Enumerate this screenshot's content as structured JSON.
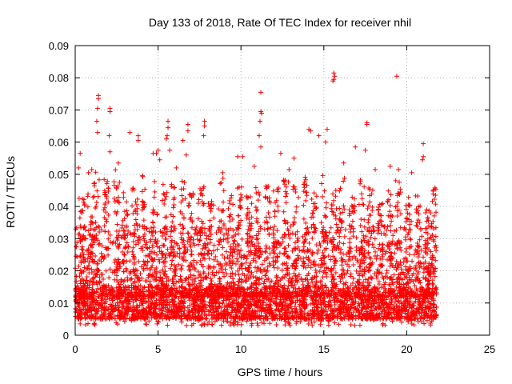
{
  "chart_data": {
    "type": "scatter",
    "title": "Day 133 of 2018, Rate Of TEC Index for receiver nhil",
    "xlabel": "GPS time / hours",
    "ylabel": "ROTI / TECUs",
    "xlim": [
      0,
      25
    ],
    "ylim": [
      0,
      0.09
    ],
    "x_ticks": [
      0,
      5,
      10,
      15,
      20,
      25
    ],
    "x_tick_labels": [
      "0",
      "5",
      "10",
      "15",
      "20",
      "25"
    ],
    "y_ticks": [
      0,
      0.01,
      0.02,
      0.03,
      0.04,
      0.05,
      0.06,
      0.07,
      0.08,
      0.09
    ],
    "y_tick_labels": [
      "0",
      "0.01",
      "0.02",
      "0.03",
      "0.04",
      "0.05",
      "0.06",
      "0.07",
      "0.08",
      "0.09"
    ],
    "grid": true,
    "marker": "+",
    "color": "#ff0000",
    "x_data_range": [
      0,
      21.8
    ],
    "baseline_band": [
      0.005,
      0.015
    ],
    "outliers": [
      {
        "x": 1.4,
        "y": 0.0745
      },
      {
        "x": 1.4,
        "y": 0.0735
      },
      {
        "x": 1.35,
        "y": 0.0705
      },
      {
        "x": 1.3,
        "y": 0.0665
      },
      {
        "x": 1.35,
        "y": 0.063
      },
      {
        "x": 2.1,
        "y": 0.0705
      },
      {
        "x": 2.1,
        "y": 0.0695
      },
      {
        "x": 2.05,
        "y": 0.062
      },
      {
        "x": 2.1,
        "y": 0.057
      },
      {
        "x": 0.3,
        "y": 0.0565
      },
      {
        "x": 0.2,
        "y": 0.052
      },
      {
        "x": 3.3,
        "y": 0.063
      },
      {
        "x": 3.8,
        "y": 0.062
      },
      {
        "x": 3.8,
        "y": 0.0605
      },
      {
        "x": 4.7,
        "y": 0.0565
      },
      {
        "x": 4.9,
        "y": 0.0565
      },
      {
        "x": 5.0,
        "y": 0.0575
      },
      {
        "x": 5.1,
        "y": 0.0545
      },
      {
        "x": 5.6,
        "y": 0.0665
      },
      {
        "x": 5.6,
        "y": 0.0645
      },
      {
        "x": 5.55,
        "y": 0.062
      },
      {
        "x": 5.5,
        "y": 0.061
      },
      {
        "x": 5.7,
        "y": 0.0575
      },
      {
        "x": 6.5,
        "y": 0.0605
      },
      {
        "x": 6.8,
        "y": 0.0655
      },
      {
        "x": 6.8,
        "y": 0.0635
      },
      {
        "x": 6.7,
        "y": 0.056
      },
      {
        "x": 7.8,
        "y": 0.0665
      },
      {
        "x": 7.8,
        "y": 0.065
      },
      {
        "x": 7.75,
        "y": 0.062
      },
      {
        "x": 9.8,
        "y": 0.0555
      },
      {
        "x": 10.1,
        "y": 0.0555
      },
      {
        "x": 11.2,
        "y": 0.0755
      },
      {
        "x": 11.2,
        "y": 0.0695
      },
      {
        "x": 11.25,
        "y": 0.069
      },
      {
        "x": 11.15,
        "y": 0.0665
      },
      {
        "x": 11.1,
        "y": 0.062
      },
      {
        "x": 11.2,
        "y": 0.0585
      },
      {
        "x": 12.4,
        "y": 0.0565
      },
      {
        "x": 13.2,
        "y": 0.055
      },
      {
        "x": 14.1,
        "y": 0.064
      },
      {
        "x": 14.2,
        "y": 0.0635
      },
      {
        "x": 14.7,
        "y": 0.062
      },
      {
        "x": 15.2,
        "y": 0.064
      },
      {
        "x": 15.1,
        "y": 0.06
      },
      {
        "x": 15.6,
        "y": 0.0815
      },
      {
        "x": 15.65,
        "y": 0.0805
      },
      {
        "x": 15.6,
        "y": 0.0795
      },
      {
        "x": 15.55,
        "y": 0.079
      },
      {
        "x": 16.9,
        "y": 0.0585
      },
      {
        "x": 17.6,
        "y": 0.066
      },
      {
        "x": 17.6,
        "y": 0.0655
      },
      {
        "x": 17.5,
        "y": 0.0575
      },
      {
        "x": 19.4,
        "y": 0.0805
      },
      {
        "x": 21.0,
        "y": 0.0595
      },
      {
        "x": 21.0,
        "y": 0.0555
      },
      {
        "x": 20.95,
        "y": 0.0545
      },
      {
        "x": 0.8,
        "y": 0.0505
      },
      {
        "x": 1.0,
        "y": 0.0515
      },
      {
        "x": 2.6,
        "y": 0.0535
      },
      {
        "x": 6.1,
        "y": 0.052
      },
      {
        "x": 8.9,
        "y": 0.0505
      },
      {
        "x": 10.8,
        "y": 0.0525
      },
      {
        "x": 12.9,
        "y": 0.0515
      },
      {
        "x": 16.2,
        "y": 0.0535
      },
      {
        "x": 18.1,
        "y": 0.0515
      },
      {
        "x": 19.0,
        "y": 0.0525
      },
      {
        "x": 19.5,
        "y": 0.0515
      },
      {
        "x": 20.3,
        "y": 0.0505
      }
    ],
    "spikes": [
      {
        "x": 0.4,
        "peak": 0.045
      },
      {
        "x": 0.9,
        "peak": 0.047
      },
      {
        "x": 1.3,
        "peak": 0.052
      },
      {
        "x": 1.9,
        "peak": 0.05
      },
      {
        "x": 2.5,
        "peak": 0.052
      },
      {
        "x": 3.0,
        "peak": 0.045
      },
      {
        "x": 3.6,
        "peak": 0.047
      },
      {
        "x": 4.2,
        "peak": 0.05
      },
      {
        "x": 4.8,
        "peak": 0.048
      },
      {
        "x": 5.4,
        "peak": 0.05
      },
      {
        "x": 5.9,
        "peak": 0.047
      },
      {
        "x": 6.5,
        "peak": 0.049
      },
      {
        "x": 7.0,
        "peak": 0.046
      },
      {
        "x": 7.6,
        "peak": 0.048
      },
      {
        "x": 8.2,
        "peak": 0.042
      },
      {
        "x": 8.8,
        "peak": 0.049
      },
      {
        "x": 9.4,
        "peak": 0.044
      },
      {
        "x": 9.9,
        "peak": 0.047
      },
      {
        "x": 10.5,
        "peak": 0.045
      },
      {
        "x": 11.0,
        "peak": 0.05
      },
      {
        "x": 11.6,
        "peak": 0.048
      },
      {
        "x": 12.1,
        "peak": 0.046
      },
      {
        "x": 12.7,
        "peak": 0.049
      },
      {
        "x": 13.3,
        "peak": 0.047
      },
      {
        "x": 13.9,
        "peak": 0.05
      },
      {
        "x": 14.4,
        "peak": 0.045
      },
      {
        "x": 15.0,
        "peak": 0.05
      },
      {
        "x": 15.6,
        "peak": 0.047
      },
      {
        "x": 16.1,
        "peak": 0.05
      },
      {
        "x": 16.7,
        "peak": 0.044
      },
      {
        "x": 17.3,
        "peak": 0.049
      },
      {
        "x": 17.8,
        "peak": 0.047
      },
      {
        "x": 18.4,
        "peak": 0.044
      },
      {
        "x": 19.0,
        "peak": 0.046
      },
      {
        "x": 19.5,
        "peak": 0.049
      },
      {
        "x": 20.1,
        "peak": 0.043
      },
      {
        "x": 20.7,
        "peak": 0.045
      },
      {
        "x": 21.2,
        "peak": 0.04
      },
      {
        "x": 21.6,
        "peak": 0.046
      }
    ]
  }
}
